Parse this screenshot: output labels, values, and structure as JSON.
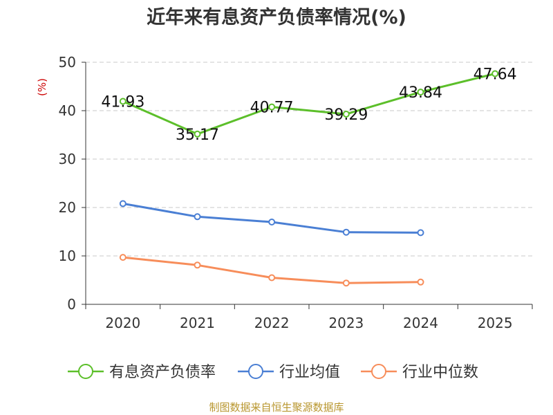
{
  "chart_data": {
    "type": "line",
    "title": "近年来有息资产负债率情况(%)",
    "ylabel": "(%)",
    "xlabel": "",
    "categories": [
      "2020",
      "2021",
      "2022",
      "2023",
      "2024",
      "2025"
    ],
    "ylim": [
      0,
      50
    ],
    "yticks": [
      0,
      10,
      20,
      30,
      40,
      50
    ],
    "grid": true,
    "legend_position": "bottom",
    "series": [
      {
        "name": "有息资产负债率",
        "color": "#5cbf2a",
        "values": [
          41.93,
          35.17,
          40.77,
          39.29,
          43.84,
          47.64
        ],
        "labels": [
          "41.93",
          "35.17",
          "40.77",
          "39.29",
          "43.84",
          "47.64"
        ],
        "show_labels": true
      },
      {
        "name": "行业均值",
        "color": "#4a7fd4",
        "values": [
          20.8,
          18.1,
          17.0,
          14.9,
          14.8,
          null
        ],
        "show_labels": false
      },
      {
        "name": "行业中位数",
        "color": "#f78d5a",
        "values": [
          9.7,
          8.1,
          5.5,
          4.4,
          4.6,
          null
        ],
        "show_labels": false
      }
    ],
    "source": "制图数据来自恒生聚源数据库"
  }
}
